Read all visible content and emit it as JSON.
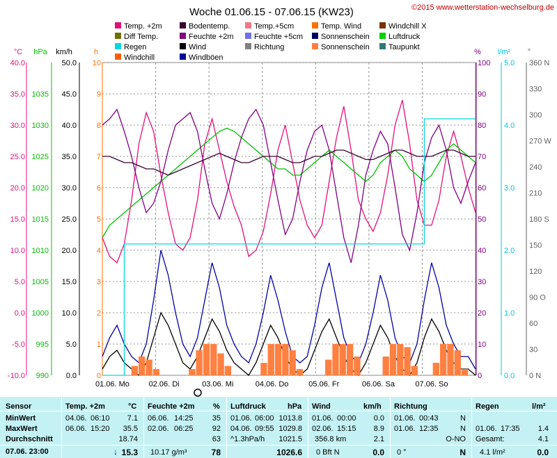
{
  "title": "Woche 01.06.15 - 07.06.15 (KW23)",
  "copyright": "©2015 www.wetterstation-wechselburg.de",
  "legend": [
    {
      "label": "Temp. +2m",
      "color": "#e0107a"
    },
    {
      "label": "Bodentemp.",
      "color": "#3a0030"
    },
    {
      "label": "Temp.+5cm",
      "color": "#f07888"
    },
    {
      "label": "Temp. Wind",
      "color": "#ff7000"
    },
    {
      "label": "Windchill X",
      "color": "#7a3000"
    },
    {
      "label": "Diff Temp.",
      "color": "#707000"
    },
    {
      "label": "Feuchte +2m",
      "color": "#800080"
    },
    {
      "label": "Feuchte +5cm",
      "color": "#7070e8"
    },
    {
      "label": "Sonnenschein",
      "color": "#000060"
    },
    {
      "label": "Luftdruck",
      "color": "#00d000"
    },
    {
      "label": "Regen",
      "color": "#00d8e0"
    },
    {
      "label": "Wind",
      "color": "#000000"
    },
    {
      "label": "Richtung",
      "color": "#808080"
    },
    {
      "label": "Sonnenschein",
      "color": "#ff8040"
    },
    {
      "label": "Taupunkt",
      "color": "#307878"
    },
    {
      "label": "Windchill",
      "color": "#ff6000"
    },
    {
      "label": "Windböen",
      "color": "#0000a0"
    }
  ],
  "axes": {
    "temp": {
      "unit": "°C",
      "color": "#e0107a",
      "ticks": [
        "40.0",
        "35.0",
        "30.0",
        "25.0",
        "20.0",
        "15.0",
        "10.0",
        "5.0",
        "0.0",
        "-5.0",
        "-10.0"
      ]
    },
    "pressure": {
      "unit": "hPa",
      "color": "#00c000",
      "ticks": [
        "1035",
        "1030",
        "1025",
        "1020",
        "1015",
        "1010",
        "1005",
        "1000",
        "995",
        "990"
      ]
    },
    "wind": {
      "unit": "km/h",
      "color": "#000000",
      "ticks": [
        "50.0",
        "45.0",
        "40.0",
        "35.0",
        "30.0",
        "25.0",
        "20.0",
        "15.0",
        "10.0",
        "5.0",
        "0.0"
      ]
    },
    "sun": {
      "unit": "h",
      "color": "#ff7000",
      "ticks": [
        "10",
        "9",
        "8",
        "7",
        "6",
        "5",
        "4",
        "3",
        "2",
        "1",
        "0"
      ]
    },
    "humidity": {
      "unit": "%",
      "color": "#800080",
      "ticks": [
        "100",
        "90",
        "80",
        "70",
        "60",
        "50",
        "40",
        "30",
        "20",
        "10",
        "0"
      ]
    },
    "rain": {
      "unit": "l/m²",
      "color": "#00c8d8",
      "ticks": [
        "5.0",
        "4.0",
        "3.0",
        "2.0",
        "1.0",
        "0.0"
      ]
    },
    "direction": {
      "unit": "°",
      "color": "#606060",
      "ticks": [
        "360 N",
        "330",
        "300",
        "270 W",
        "240",
        "210",
        "180 S",
        "150",
        "120",
        "90 O",
        "60",
        "30",
        "0 N"
      ]
    }
  },
  "chart_data": {
    "type": "line",
    "title": "Woche 01.06.15 - 07.06.15 (KW23)",
    "x_labels": [
      "01.06.",
      "Mo",
      "02.06.",
      "Di",
      "03.06.",
      "Mi",
      "04.06.",
      "Do",
      "05.06.",
      "Fr",
      "06.06.",
      "Sa",
      "07.06.",
      "So"
    ],
    "day_ticks": [
      "01.06. Mo",
      "02.06. Di",
      "03.06. Mi",
      "04.06. Do",
      "05.06. Fr",
      "06.06. Sa",
      "07.06. So"
    ],
    "grid": true,
    "temp_range": [
      -10,
      40
    ],
    "series": [
      {
        "name": "Temp. +2m",
        "color": "#e0107a",
        "axis": "temp",
        "values": [
          12,
          9,
          8,
          11,
          18,
          27,
          32,
          29,
          22,
          16,
          11,
          10,
          12,
          18,
          27,
          31,
          26,
          21,
          17,
          14,
          9,
          10,
          13,
          19,
          26,
          30,
          24,
          18,
          14,
          12,
          14,
          21,
          28,
          33,
          26,
          18,
          15,
          13,
          16,
          22,
          30,
          34,
          27,
          18,
          14,
          14,
          18,
          25,
          29,
          25,
          20,
          16
        ]
      },
      {
        "name": "Luftdruck",
        "color": "#00c000",
        "axis": "pressure",
        "values": [
          1012,
          1014,
          1015,
          1016,
          1017,
          1018,
          1019,
          1020,
          1021,
          1022,
          1023,
          1024,
          1025,
          1026,
          1027,
          1028,
          1029,
          1029.5,
          1029,
          1028,
          1027,
          1026,
          1025,
          1024,
          1023,
          1023,
          1022,
          1022,
          1023,
          1024,
          1025,
          1026,
          1025,
          1024,
          1023,
          1022,
          1021,
          1022,
          1024,
          1025,
          1026,
          1025,
          1023,
          1022,
          1021,
          1022,
          1024,
          1026,
          1027,
          1026,
          1025,
          1024
        ]
      },
      {
        "name": "Feuchte +2m",
        "color": "#800080",
        "axis": "humidity",
        "values": [
          80,
          82,
          85,
          78,
          70,
          60,
          52,
          55,
          62,
          72,
          80,
          82,
          84,
          78,
          66,
          55,
          50,
          58,
          68,
          76,
          82,
          85,
          80,
          68,
          56,
          45,
          50,
          62,
          72,
          78,
          80,
          72,
          58,
          44,
          36,
          48,
          64,
          72,
          78,
          74,
          60,
          45,
          40,
          52,
          68,
          76,
          80,
          72,
          60,
          55,
          62,
          68
        ]
      },
      {
        "name": "Bodentemp.",
        "color": "#3a0030",
        "axis": "temp",
        "values": [
          25,
          25,
          24.5,
          24,
          24,
          23.5,
          23,
          23,
          22.5,
          22,
          22.5,
          23,
          23.5,
          24,
          24.5,
          25,
          25.5,
          25,
          24.5,
          24,
          24,
          24.5,
          25,
          25,
          25,
          24.5,
          24,
          24,
          24.5,
          25,
          25,
          25.5,
          26,
          26,
          25.5,
          25,
          24.5,
          24.5,
          25,
          25.5,
          26,
          26,
          25.5,
          25,
          25,
          25,
          25.5,
          26,
          26,
          25.5,
          25,
          25
        ]
      },
      {
        "name": "Wind",
        "color": "#000000",
        "axis": "wind",
        "values": [
          1,
          3,
          4,
          2,
          1,
          0,
          2,
          6,
          10,
          8,
          5,
          2,
          1,
          3,
          6,
          9,
          7,
          4,
          2,
          1,
          0,
          2,
          5,
          8,
          6,
          3,
          1,
          0,
          1,
          4,
          7,
          9,
          6,
          3,
          1,
          0,
          2,
          5,
          8,
          6,
          3,
          1,
          0,
          2,
          6,
          9,
          7,
          4,
          2,
          1,
          1,
          0
        ]
      },
      {
        "name": "Windböen",
        "color": "#0000a0",
        "axis": "wind",
        "values": [
          3,
          6,
          8,
          5,
          3,
          2,
          5,
          12,
          20,
          16,
          10,
          5,
          3,
          6,
          12,
          18,
          14,
          8,
          5,
          3,
          2,
          5,
          10,
          16,
          12,
          7,
          3,
          2,
          3,
          8,
          14,
          18,
          12,
          6,
          3,
          2,
          5,
          10,
          16,
          12,
          6,
          3,
          2,
          5,
          12,
          18,
          14,
          8,
          5,
          3,
          3,
          1
        ]
      },
      {
        "name": "Sonnenschein",
        "color": "#ff8040",
        "axis": "sun",
        "values": [
          0,
          0,
          0,
          0,
          0.3,
          0.6,
          0.5,
          0.2,
          0,
          0,
          0,
          0,
          0.2,
          0.8,
          1,
          1,
          0.7,
          0.3,
          0,
          0,
          0,
          0,
          0.4,
          1,
          1,
          1,
          0.8,
          0.2,
          0,
          0,
          0,
          0.5,
          1,
          1,
          1,
          0.6,
          0,
          0,
          0,
          0.6,
          1,
          1,
          0.9,
          0.3,
          0,
          0,
          0.4,
          1,
          1,
          0.8,
          0.2,
          0
        ]
      },
      {
        "name": "Regen",
        "color": "#00d8e0",
        "axis": "rain",
        "values": [
          0,
          0,
          0,
          2.1,
          2.1,
          2.1,
          2.1,
          2.1,
          2.1,
          2.1,
          2.1,
          2.1,
          2.1,
          2.1,
          2.1,
          2.1,
          2.1,
          2.1,
          2.1,
          2.1,
          2.1,
          2.1,
          2.1,
          2.1,
          2.1,
          2.1,
          2.1,
          2.1,
          2.1,
          2.1,
          2.1,
          2.1,
          2.1,
          2.1,
          2.1,
          2.1,
          2.1,
          2.1,
          2.1,
          2.1,
          2.1,
          2.1,
          2.1,
          2.1,
          4.1,
          4.1,
          4.1,
          4.1,
          4.1,
          4.1,
          4.1,
          4.1
        ]
      }
    ]
  },
  "table": {
    "headers": {
      "sensor": "Sensor",
      "temp": "Temp. +2m",
      "temp_unit": "°C",
      "hum": "Feuchte +2m",
      "hum_unit": "%",
      "pres": "Luftdruck",
      "pres_unit": "hPa",
      "wind": "Wind",
      "wind_unit": "km/h",
      "dir": "Richtung",
      "rain": "Regen",
      "rain_unit": "l/m²"
    },
    "rows": {
      "min": "MinWert",
      "max": "MaxWert",
      "avg": "Durchschnitt",
      "now": "07.06. 23:00"
    },
    "temp": {
      "min_date": "04.06.",
      "min_time": "06:10",
      "min_val": "7.1",
      "max_date": "06.06.",
      "max_time": "15:20",
      "max_val": "35.5",
      "avg": "18.74",
      "now": "15.3"
    },
    "hum": {
      "min_date": "06.06.",
      "min_time": "14:25",
      "min_val": "35",
      "max_date": "02.06.",
      "max_time": "06:25",
      "max_val": "92",
      "avg": "63",
      "now_extra": "10.17 g/m³",
      "now": "78"
    },
    "pres": {
      "min_date": "01.06.",
      "min_time": "06:00",
      "min_val": "1013.8",
      "max_date": "04.06.",
      "max_time": "09:55",
      "max_val": "1029.8",
      "avg_label": "^1.3hPa/h",
      "avg": "1021.5",
      "now": "1026.6"
    },
    "wind": {
      "min_date": "01.06.",
      "min_time": "00:00",
      "min_val": "0.0",
      "max_date": "02.06.",
      "max_time": "15:15",
      "max_val": "8.9",
      "avg_label": "356.8 km",
      "avg": "2.1",
      "now_label": "0 Bft N",
      "now": "0.0"
    },
    "dir": {
      "min_date": "01.06.",
      "min_time": "00:43",
      "min_val": "N",
      "max_date": "01.06.",
      "max_time": "12:35",
      "max_val": "N",
      "avg": "O-NO",
      "now_label": "0 °",
      "now": "N"
    },
    "rain": {
      "max_date": "01.06.",
      "max_time": "17:35",
      "max_val": "1.4",
      "avg_label": "Gesamt:",
      "avg": "4.1",
      "now_label": "4.1 l/m²",
      "now": "0.0"
    }
  }
}
